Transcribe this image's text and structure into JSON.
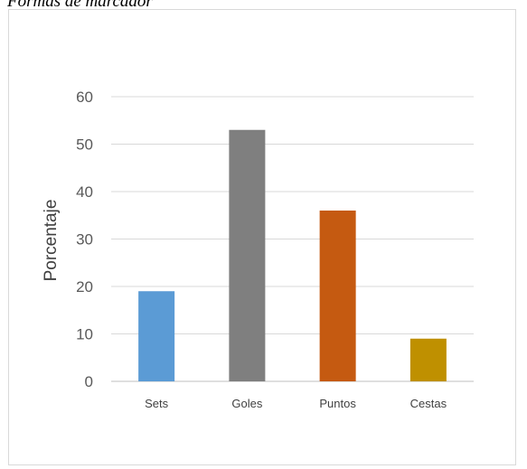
{
  "caption": "Formas de marcador",
  "chart_data": {
    "type": "bar",
    "title": "",
    "xlabel": "",
    "ylabel": "Porcentaje",
    "categories": [
      "Sets",
      "Goles",
      "Puntos",
      "Cestas"
    ],
    "values": [
      19,
      53,
      36,
      9
    ],
    "colors": [
      "#5b9bd5",
      "#7f7f7f",
      "#c55a11",
      "#bf9000"
    ],
    "ylim": [
      0,
      60
    ],
    "yticks": [
      0,
      10,
      20,
      30,
      40,
      50,
      60
    ],
    "grid": true,
    "legend": "none"
  }
}
